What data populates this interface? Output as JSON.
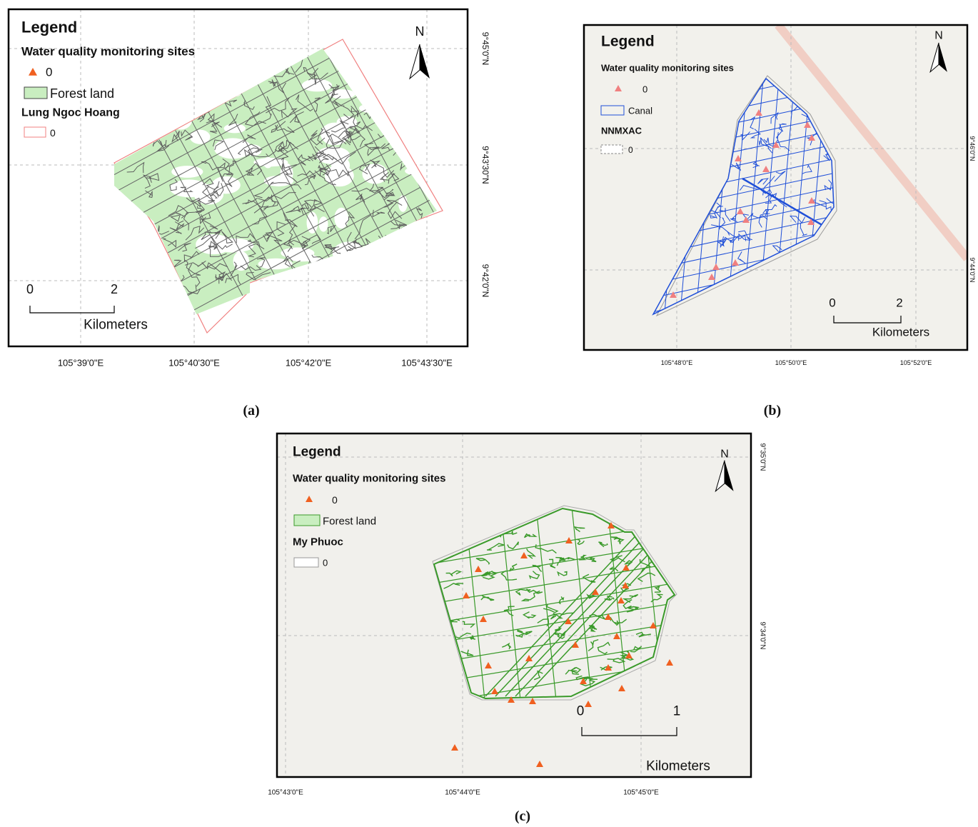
{
  "panels": [
    {
      "caption": "(a)",
      "north": "N",
      "legend": {
        "title": "Legend",
        "sites_heading": "Water quality monitoring sites",
        "sites_label": 0,
        "layer_label": "Forest land",
        "boundary_heading": "Lung Ngoc Hoang",
        "boundary_label": 0
      },
      "scale_bar": {
        "start": 0,
        "end": 2,
        "unit": "Kilometers"
      },
      "latitude_labels": [
        "9°45'0\"N",
        "9°43'30\"N",
        "9°42'0\"N"
      ],
      "longitude_labels": [
        "105°39'0\"E",
        "105°40'30\"E",
        "105°42'0\"E",
        "105°43'30\"E"
      ]
    },
    {
      "caption": "(b)",
      "north": "N",
      "legend": {
        "title": "Legend",
        "sites_heading": "Water quality monitoring sites",
        "sites_label": 0,
        "layer_label": "Canal",
        "boundary_heading": "NNMXAC",
        "boundary_label": 0
      },
      "scale_bar": {
        "start": 0,
        "end": 2,
        "unit": "Kilometers"
      },
      "latitude_labels": [
        "9°46'0\"N",
        "9°44'0\"N"
      ],
      "longitude_labels": [
        "105°48'0\"E",
        "105°50'0\"E",
        "105°52'0\"E"
      ]
    },
    {
      "caption": "(c)",
      "north": "N",
      "legend": {
        "title": "Legend",
        "sites_heading": "Water quality monitoring sites",
        "sites_label": 0,
        "layer_label": "Forest land",
        "boundary_heading": "My Phuoc",
        "boundary_label": 0
      },
      "scale_bar": {
        "start": 0,
        "end": 1,
        "unit": "Kilometers"
      },
      "latitude_labels": [
        "9°35'0\"N",
        "9°34'0\"N"
      ],
      "longitude_labels": [
        "105°43'0\"E",
        "105°44'0\"E",
        "105°45'0\"E"
      ]
    }
  ]
}
